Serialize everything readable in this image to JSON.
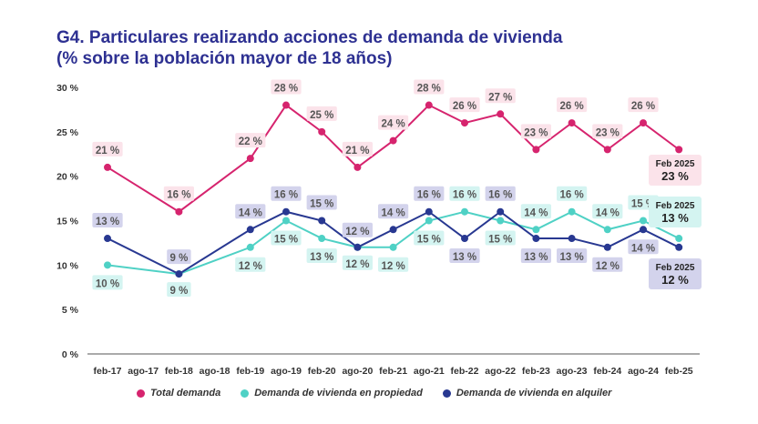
{
  "title_line1": "G4. Particulares realizando acciones de demanda de vivienda",
  "title_line2": "(% sobre la población mayor de 18 años)",
  "chart_data": {
    "type": "line",
    "categories": [
      "feb-17",
      "ago-17",
      "feb-18",
      "ago-18",
      "feb-19",
      "ago-19",
      "feb-20",
      "ago-20",
      "feb-21",
      "ago-21",
      "feb-22",
      "ago-22",
      "feb-23",
      "ago-23",
      "feb-24",
      "ago-24",
      "feb-25"
    ],
    "ylim": [
      0,
      30
    ],
    "yticks": [
      0,
      5,
      10,
      15,
      20,
      25,
      30
    ],
    "ytick_labels": [
      "0 %",
      "5 %",
      "10 %",
      "15 %",
      "20 %",
      "25 %",
      "30 %"
    ],
    "grid": false,
    "legend_position": "bottom",
    "series": [
      {
        "name": "Total demanda",
        "color": "#d6246e",
        "label_bg": "#fbe3ea",
        "x": [
          "feb-17",
          "feb-18",
          "feb-19",
          "ago-19",
          "feb-20",
          "ago-20",
          "feb-21",
          "ago-21",
          "feb-22",
          "ago-22",
          "feb-23",
          "ago-23",
          "feb-24",
          "ago-24",
          "feb-25"
        ],
        "values": [
          21,
          16,
          22,
          28,
          25,
          21,
          24,
          28,
          26,
          27,
          23,
          26,
          23,
          26,
          23
        ],
        "labels": [
          "21 %",
          "16 %",
          "22 %",
          "28 %",
          "25 %",
          "21 %",
          "24 %",
          "28 %",
          "26 %",
          "27 %",
          "23 %",
          "26 %",
          "23 %",
          "26 %",
          ""
        ]
      },
      {
        "name": "Demanda de vivienda en propiedad",
        "color": "#4fd1c5",
        "label_bg": "#d4f4f1",
        "x": [
          "feb-17",
          "feb-18",
          "feb-19",
          "ago-19",
          "feb-20",
          "ago-20",
          "feb-21",
          "ago-21",
          "feb-22",
          "ago-22",
          "feb-23",
          "ago-23",
          "feb-24",
          "ago-24",
          "feb-25"
        ],
        "values": [
          10,
          9,
          12,
          15,
          13,
          12,
          12,
          15,
          16,
          15,
          14,
          16,
          14,
          15,
          13
        ],
        "labels": [
          "10 %",
          "9 %",
          "12 %",
          "15 %",
          "13 %",
          "12 %",
          "12 %",
          "15 %",
          "16 %",
          "15 %",
          "14 %",
          "16 %",
          "14 %",
          "15 %",
          ""
        ]
      },
      {
        "name": "Demanda de vivienda en alquiler",
        "color": "#283891",
        "label_bg": "#d3d3ec",
        "x": [
          "feb-17",
          "feb-18",
          "feb-19",
          "ago-19",
          "feb-20",
          "ago-20",
          "feb-21",
          "ago-21",
          "feb-22",
          "ago-22",
          "feb-23",
          "ago-23",
          "feb-24",
          "ago-24",
          "feb-25"
        ],
        "values": [
          13,
          9,
          14,
          16,
          15,
          12,
          14,
          16,
          13,
          16,
          13,
          13,
          12,
          14,
          12
        ],
        "labels": [
          "13 %",
          "9 %",
          "14 %",
          "16 %",
          "15 %",
          "12 %",
          "14 %",
          "16 %",
          "13 %",
          "16 %",
          "13 %",
          "13 %",
          "12 %",
          "14 %",
          ""
        ]
      }
    ],
    "callouts": [
      {
        "series": 0,
        "label": "Feb 2025",
        "value": "23 %"
      },
      {
        "series": 1,
        "label": "Feb 2025",
        "value": "13 %"
      },
      {
        "series": 2,
        "label": "Feb 2025",
        "value": "12 %"
      }
    ]
  }
}
